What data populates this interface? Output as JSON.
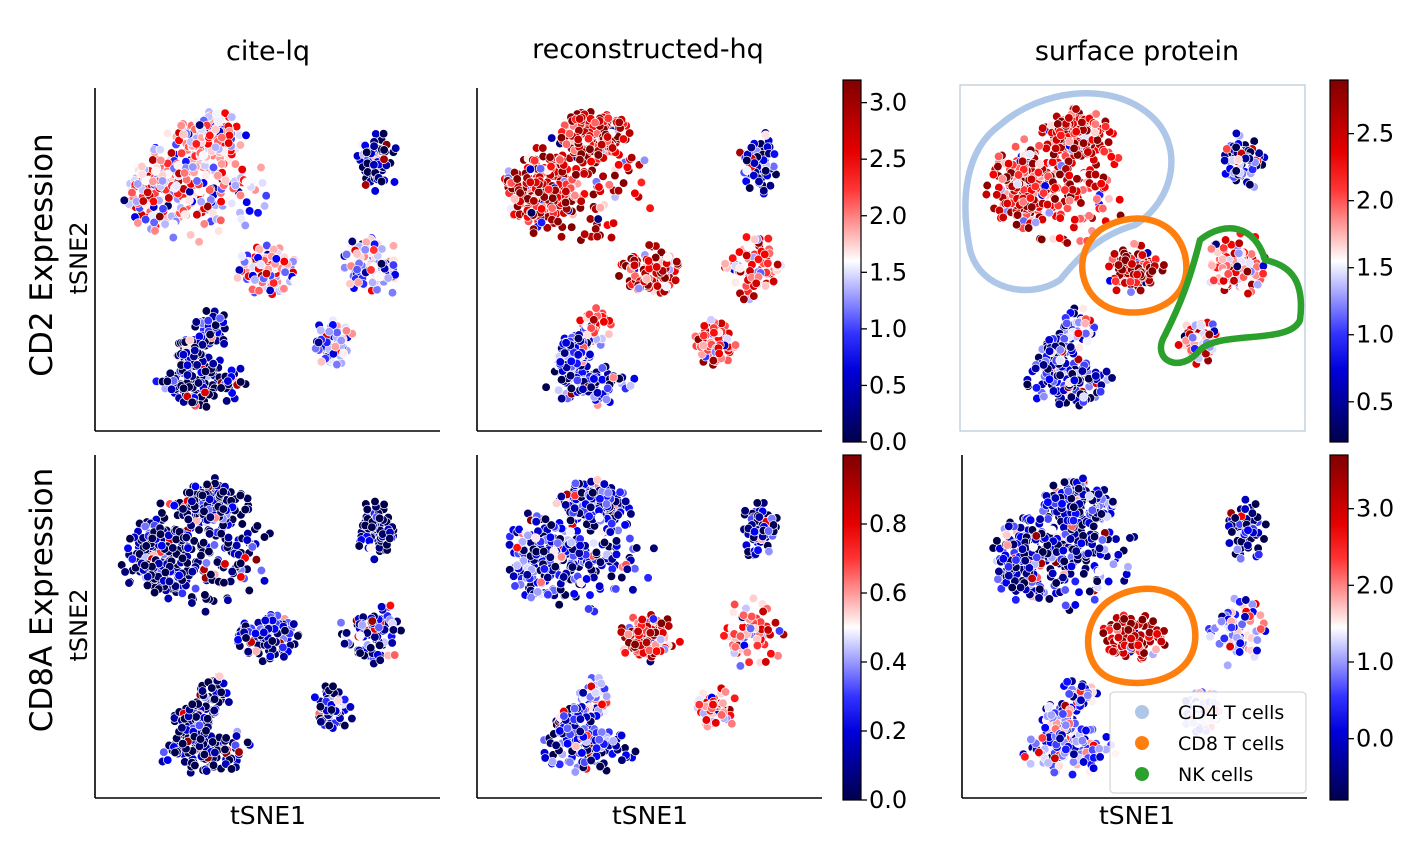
{
  "figure": {
    "column_titles": [
      "cite-lq",
      "reconstructed-hq",
      "surface protein"
    ],
    "row_labels": [
      "CD2 Expression",
      "CD8A Expression"
    ],
    "xlabel": "tSNE1",
    "ylabel": "tSNE2"
  },
  "colormap": {
    "name": "seismic",
    "low": "#000050",
    "mid": "#ffffff",
    "high": "#7a0000",
    "point_edge": "#ffffff"
  },
  "legend": {
    "placement": "lower-right",
    "entries": [
      {
        "label": "CD4 T cells",
        "color": "#aec7e8"
      },
      {
        "label": "CD8 T cells",
        "color": "#ff7f0e"
      },
      {
        "label": "NK cells",
        "color": "#2ca02c"
      }
    ]
  },
  "chart_data": [
    {
      "type": "scatter",
      "panel": "CD2 cite-lq",
      "title": "cite-lq",
      "ylabel": "tSNE2",
      "colorbar": null,
      "cluster_level": {
        "main": 0.55,
        "cd8": 0.55,
        "nk": 0.4,
        "tl": 0.05,
        "rb": 0.05,
        "bottom": 0.03,
        "bridge": 0.1
      }
    },
    {
      "type": "scatter",
      "panel": "CD2 reconstructed-hq",
      "title": "reconstructed-hq",
      "colorbar": {
        "vmin": 0.0,
        "vmax": 3.2,
        "ticks": [
          "0.0",
          "0.5",
          "1.0",
          "1.5",
          "2.0",
          "2.5",
          "3.0"
        ]
      },
      "cluster_level": {
        "main": 0.85,
        "cd8": 0.82,
        "nk": 0.7,
        "tl": 0.08,
        "rb": 0.03,
        "bottom": 0.22,
        "bridge": 0.6
      }
    },
    {
      "type": "scatter",
      "panel": "CD2 surface protein",
      "title": "surface protein",
      "colorbar": {
        "vmin": 0.2,
        "vmax": 2.9,
        "ticks": [
          "0.5",
          "1.0",
          "1.5",
          "2.0",
          "2.5"
        ]
      },
      "cluster_level": {
        "main": 0.82,
        "cd8": 0.9,
        "nk": 0.65,
        "tl": 0.1,
        "rb": 0.1,
        "bottom": 0.15,
        "bridge": 0.4
      },
      "outlines": [
        "CD4 T cells",
        "CD8 T cells",
        "NK cells"
      ]
    },
    {
      "type": "scatter",
      "panel": "CD8A cite-lq",
      "xlabel": "tSNE1",
      "ylabel": "tSNE2",
      "colorbar": null,
      "cluster_level": {
        "main": 0.02,
        "cd8": 0.18,
        "nk": 0.1,
        "tl": 0.02,
        "rb": 0.02,
        "bottom": 0.02,
        "bridge": 0.05
      }
    },
    {
      "type": "scatter",
      "panel": "CD8A reconstructed-hq",
      "xlabel": "tSNE1",
      "colorbar": {
        "vmin": 0.0,
        "vmax": 1.0,
        "ticks": [
          "0.0",
          "0.2",
          "0.4",
          "0.6",
          "0.8"
        ]
      },
      "cluster_level": {
        "main": 0.18,
        "cd8": 0.82,
        "nk": 0.62,
        "tl": 0.1,
        "rb": 0.08,
        "bottom": 0.18,
        "bridge": 0.4
      }
    },
    {
      "type": "scatter",
      "panel": "CD8A surface protein",
      "xlabel": "tSNE1",
      "colorbar": {
        "vmin": -0.8,
        "vmax": 3.7,
        "ticks": [
          "0.0",
          "1.0",
          "2.0",
          "3.0"
        ]
      },
      "cluster_level": {
        "main": 0.12,
        "cd8": 0.88,
        "nk": 0.4,
        "tl": 0.1,
        "rb": 0.1,
        "bottom": 0.35,
        "bridge": 0.35
      },
      "outlines": [
        "CD8 T cells"
      ]
    }
  ]
}
